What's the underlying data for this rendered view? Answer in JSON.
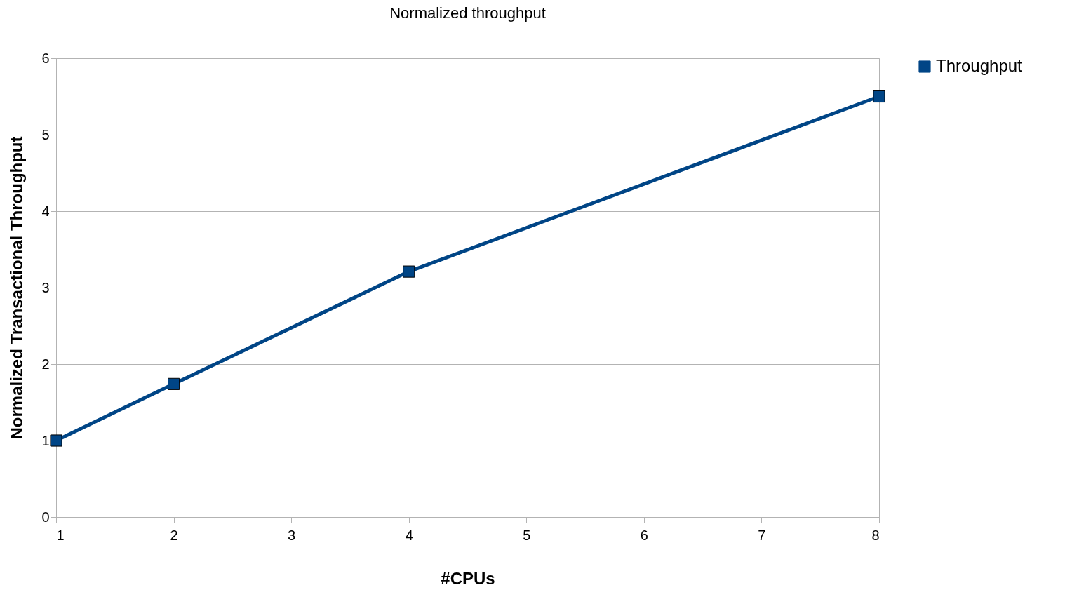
{
  "chart_data": {
    "type": "line",
    "title": "Normalized throughput",
    "xlabel": "#CPUs",
    "ylabel": "Normalized Transactional Throughput",
    "x": [
      1,
      2,
      4,
      8
    ],
    "series": [
      {
        "name": "Throughput",
        "color": "#004586",
        "values": [
          1.0,
          1.74,
          3.21,
          5.5
        ]
      }
    ],
    "xlim": [
      1,
      8
    ],
    "ylim": [
      0,
      6
    ],
    "xticks": [
      1,
      2,
      3,
      4,
      5,
      6,
      7,
      8
    ],
    "yticks": [
      0,
      1,
      2,
      3,
      4,
      5,
      6
    ],
    "grid": "y",
    "legend": "right",
    "marker": "square",
    "line_style": "solid"
  }
}
